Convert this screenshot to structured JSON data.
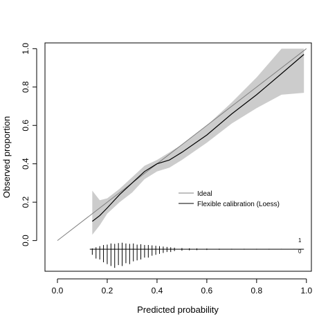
{
  "chart_data": {
    "type": "line",
    "title": "",
    "xlabel": "Predicted probability",
    "ylabel": "Observed proportion",
    "xlim": [
      -0.05,
      1.02
    ],
    "ylim": [
      -0.16,
      1.03
    ],
    "x_ticks": [
      0.0,
      0.2,
      0.4,
      0.6,
      0.8,
      1.0
    ],
    "x_tick_labels": [
      "0.0",
      "0.2",
      "0.4",
      "0.6",
      "0.8",
      "1.0"
    ],
    "y_ticks": [
      0.0,
      0.2,
      0.4,
      0.6,
      0.8,
      1.0
    ],
    "y_tick_labels": [
      "0.0",
      "0.2",
      "0.4",
      "0.6",
      "0.8",
      "1.0"
    ],
    "grid": false,
    "legend": {
      "placement": "center-right",
      "entries": [
        {
          "label": "Ideal",
          "color": "#808080"
        },
        {
          "label": "Flexible calibration (Loess)",
          "color": "#000000"
        }
      ]
    },
    "series": [
      {
        "name": "Ideal",
        "color": "#808080",
        "x": [
          0.0,
          1.0
        ],
        "y": [
          0.0,
          1.0
        ]
      },
      {
        "name": "Flexible calibration (Loess)",
        "color": "#000000",
        "x": [
          0.14,
          0.17,
          0.2,
          0.25,
          0.3,
          0.35,
          0.4,
          0.45,
          0.5,
          0.6,
          0.7,
          0.8,
          0.9,
          0.99
        ],
        "y": [
          0.1,
          0.13,
          0.17,
          0.24,
          0.3,
          0.36,
          0.4,
          0.42,
          0.46,
          0.55,
          0.66,
          0.76,
          0.87,
          0.97
        ],
        "ci_lower": [
          0.03,
          0.08,
          0.14,
          0.2,
          0.25,
          0.32,
          0.36,
          0.38,
          0.42,
          0.51,
          0.61,
          0.69,
          0.76,
          0.77
        ],
        "ci_upper": [
          0.26,
          0.21,
          0.22,
          0.27,
          0.33,
          0.39,
          0.42,
          0.46,
          0.5,
          0.6,
          0.72,
          0.85,
          1.0,
          1.0
        ]
      }
    ],
    "distribution": {
      "labels": [
        "1",
        "0"
      ],
      "baseline_y": -0.045,
      "x_range": [
        0.13,
        0.99
      ],
      "x": [
        0.14,
        0.155,
        0.17,
        0.185,
        0.2,
        0.215,
        0.23,
        0.245,
        0.26,
        0.275,
        0.29,
        0.305,
        0.32,
        0.335,
        0.35,
        0.365,
        0.38,
        0.395,
        0.41,
        0.425,
        0.44,
        0.455,
        0.47,
        0.5,
        0.53,
        0.56,
        0.6,
        0.65,
        0.7,
        0.75,
        0.8,
        0.85,
        0.9,
        0.95
      ],
      "counts_1": [
        0.1,
        0.25,
        0.4,
        0.55,
        0.6,
        0.75,
        0.7,
        0.8,
        0.85,
        0.75,
        0.7,
        0.75,
        0.6,
        0.65,
        0.55,
        0.55,
        0.5,
        0.45,
        0.4,
        0.35,
        0.3,
        0.25,
        0.2,
        0.15,
        0.12,
        0.1,
        0.08,
        0.06,
        0.05,
        0.05,
        0.04,
        0.04,
        0.04,
        0.03
      ],
      "counts_0": [
        0.3,
        0.5,
        0.55,
        0.7,
        0.8,
        0.9,
        1.0,
        0.85,
        0.9,
        0.75,
        0.8,
        0.65,
        0.6,
        0.55,
        0.45,
        0.45,
        0.35,
        0.3,
        0.25,
        0.2,
        0.15,
        0.15,
        0.1,
        0.08,
        0.06,
        0.05,
        0.04,
        0.03,
        0.02,
        0.02,
        0.02,
        0.02,
        0.01,
        0.01
      ]
    }
  }
}
